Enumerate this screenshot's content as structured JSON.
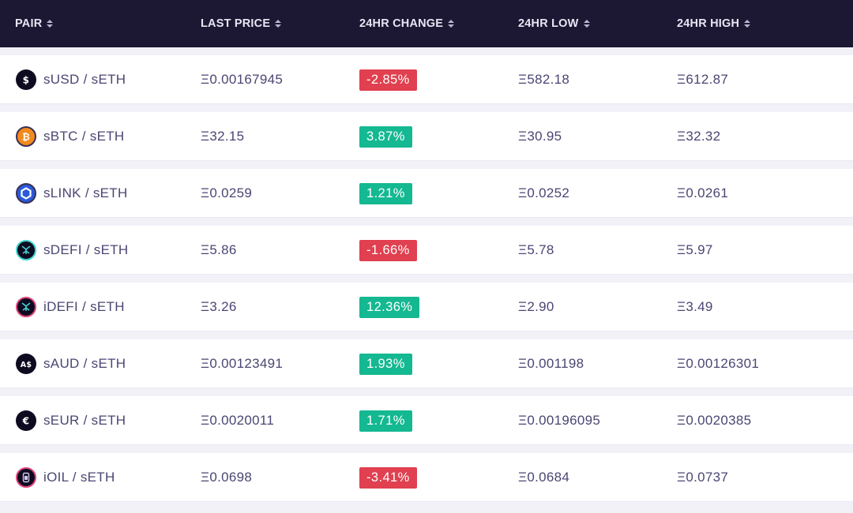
{
  "header": {
    "columns": [
      {
        "key": "pair",
        "label": "PAIR"
      },
      {
        "key": "last_price",
        "label": "LAST PRICE"
      },
      {
        "key": "change",
        "label": "24HR CHANGE"
      },
      {
        "key": "low",
        "label": "24HR LOW"
      },
      {
        "key": "high",
        "label": "24HR HIGH"
      }
    ]
  },
  "colors": {
    "header_bg": "#1c1833",
    "negative": "#e0404f",
    "positive": "#14b891",
    "text": "#4a4673"
  },
  "rows": [
    {
      "icon": "dollar-coin-icon",
      "pair": "sUSD / sETH",
      "last_price": "Ξ0.00167945",
      "change": "-2.85%",
      "direction": "negative",
      "low": "Ξ582.18",
      "high": "Ξ612.87"
    },
    {
      "icon": "bitcoin-coin-icon",
      "pair": "sBTC / sETH",
      "last_price": "Ξ32.15",
      "change": "3.87%",
      "direction": "positive",
      "low": "Ξ30.95",
      "high": "Ξ32.32"
    },
    {
      "icon": "chainlink-coin-icon",
      "pair": "sLINK / sETH",
      "last_price": "Ξ0.0259",
      "change": "1.21%",
      "direction": "positive",
      "low": "Ξ0.0252",
      "high": "Ξ0.0261"
    },
    {
      "icon": "sdefi-coin-icon",
      "pair": "sDEFI / sETH",
      "last_price": "Ξ5.86",
      "change": "-1.66%",
      "direction": "negative",
      "low": "Ξ5.78",
      "high": "Ξ5.97"
    },
    {
      "icon": "idefi-coin-icon",
      "pair": "iDEFI / sETH",
      "last_price": "Ξ3.26",
      "change": "12.36%",
      "direction": "positive",
      "low": "Ξ2.90",
      "high": "Ξ3.49"
    },
    {
      "icon": "aud-coin-icon",
      "pair": "sAUD / sETH",
      "last_price": "Ξ0.00123491",
      "change": "1.93%",
      "direction": "positive",
      "low": "Ξ0.001198",
      "high": "Ξ0.00126301"
    },
    {
      "icon": "euro-coin-icon",
      "pair": "sEUR / sETH",
      "last_price": "Ξ0.0020011",
      "change": "1.71%",
      "direction": "positive",
      "low": "Ξ0.00196095",
      "high": "Ξ0.0020385"
    },
    {
      "icon": "oil-coin-icon",
      "pair": "iOIL / sETH",
      "last_price": "Ξ0.0698",
      "change": "-3.41%",
      "direction": "negative",
      "low": "Ξ0.0684",
      "high": "Ξ0.0737"
    }
  ]
}
